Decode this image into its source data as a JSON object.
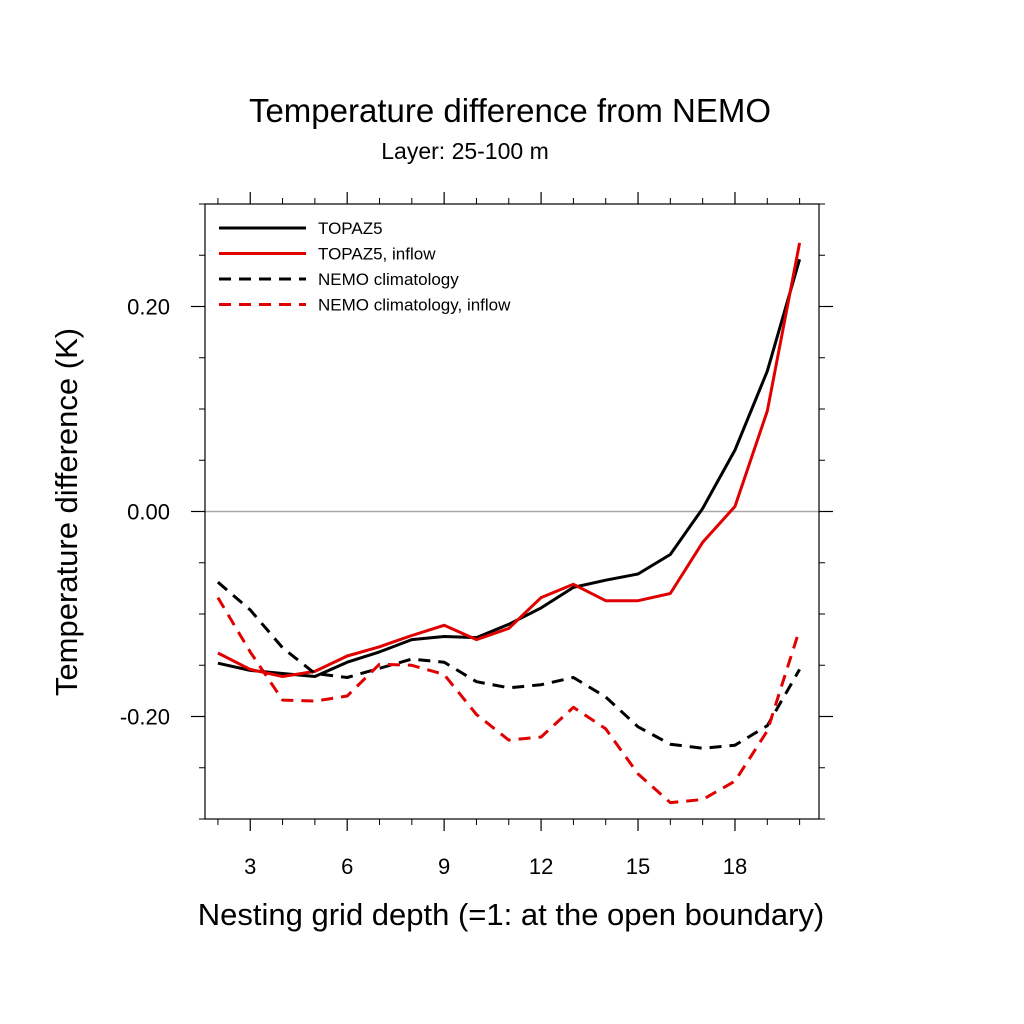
{
  "chart_data": {
    "type": "line",
    "title": "Temperature difference from NEMO",
    "subtitle": "Layer: 25-100 m",
    "xlabel": "Nesting grid depth (=1: at the open boundary)",
    "ylabel": "Temperature difference (K)",
    "xlim": [
      1.6,
      20.6
    ],
    "ylim": [
      -0.3,
      0.3
    ],
    "x_ticks": [
      3,
      6,
      9,
      12,
      15,
      18
    ],
    "x_tick_labels": [
      "3",
      "6",
      "9",
      "12",
      "15",
      "18"
    ],
    "y_ticks": [
      0.2,
      0.0,
      -0.2
    ],
    "y_tick_labels": [
      "0.20",
      "0.00",
      "-0.20"
    ],
    "zero_line": true,
    "legend_position": "top-left",
    "x": [
      2,
      3,
      4,
      5,
      6,
      7,
      8,
      9,
      10,
      11,
      12,
      13,
      14,
      15,
      16,
      17,
      18,
      19,
      20
    ],
    "series": [
      {
        "name": "TOPAZ5",
        "color": "#000000",
        "dash": "solid",
        "values": [
          -0.148,
          -0.155,
          -0.158,
          -0.161,
          -0.147,
          -0.137,
          -0.125,
          -0.122,
          -0.123,
          -0.11,
          -0.094,
          -0.074,
          -0.067,
          -0.061,
          -0.042,
          0.003,
          0.06,
          0.137,
          0.246
        ]
      },
      {
        "name": "TOPAZ5, inflow",
        "color": "#e00000",
        "dash": "solid",
        "values": [
          -0.138,
          -0.154,
          -0.161,
          -0.156,
          -0.141,
          -0.132,
          -0.121,
          -0.111,
          -0.125,
          -0.114,
          -0.084,
          -0.071,
          -0.087,
          -0.087,
          -0.08,
          -0.03,
          0.005,
          0.098,
          0.262
        ]
      },
      {
        "name": "NEMO climatology",
        "color": "#000000",
        "dash": "dashed",
        "values": [
          -0.069,
          -0.096,
          -0.133,
          -0.158,
          -0.162,
          -0.153,
          -0.144,
          -0.147,
          -0.166,
          -0.172,
          -0.169,
          -0.162,
          -0.181,
          -0.21,
          -0.227,
          -0.231,
          -0.228,
          -0.209,
          -0.154
        ]
      },
      {
        "name": "NEMO climatology, inflow",
        "color": "#e00000",
        "dash": "dashed",
        "values": [
          -0.084,
          -0.137,
          -0.184,
          -0.185,
          -0.18,
          -0.149,
          -0.15,
          -0.159,
          -0.198,
          -0.223,
          -0.22,
          -0.191,
          -0.212,
          -0.256,
          -0.284,
          -0.281,
          -0.263,
          -0.214,
          -0.115
        ]
      }
    ]
  }
}
